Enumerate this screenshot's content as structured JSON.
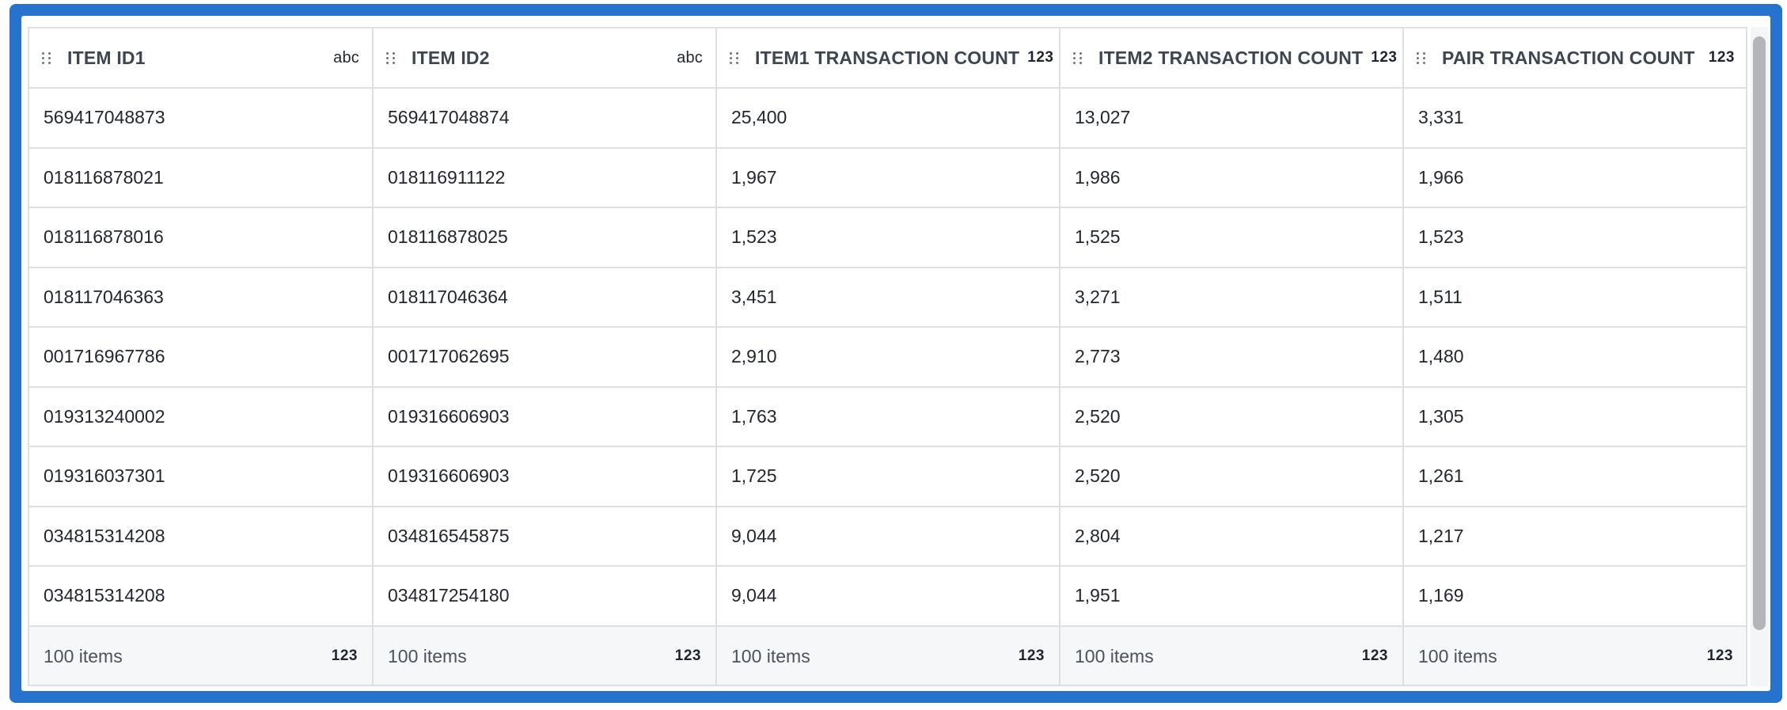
{
  "table": {
    "columns": [
      {
        "label": "ITEM ID1",
        "type_tag": "abc",
        "type_icon": "string-type-icon"
      },
      {
        "label": "ITEM ID2",
        "type_tag": "abc",
        "type_icon": "string-type-icon"
      },
      {
        "label": "ITEM1 TRANSACTION COUNT",
        "type_tag": "123",
        "type_icon": "number-type-icon"
      },
      {
        "label": "ITEM2 TRANSACTION COUNT",
        "type_tag": "123",
        "type_icon": "number-type-icon"
      },
      {
        "label": "PAIR TRANSACTION COUNT",
        "type_tag": "123",
        "type_icon": "number-type-icon"
      }
    ],
    "rows": [
      [
        "569417048873",
        "569417048874",
        "25,400",
        "13,027",
        "3,331"
      ],
      [
        "018116878021",
        "018116911122",
        "1,967",
        "1,986",
        "1,966"
      ],
      [
        "018116878016",
        "018116878025",
        "1,523",
        "1,525",
        "1,523"
      ],
      [
        "018117046363",
        "018117046364",
        "3,451",
        "3,271",
        "1,511"
      ],
      [
        "001716967786",
        "001717062695",
        "2,910",
        "2,773",
        "1,480"
      ],
      [
        "019313240002",
        "019316606903",
        "1,763",
        "2,520",
        "1,305"
      ],
      [
        "019316037301",
        "019316606903",
        "1,725",
        "2,520",
        "1,261"
      ],
      [
        "034815314208",
        "034816545875",
        "9,044",
        "2,804",
        "1,217"
      ],
      [
        "034815314208",
        "034817254180",
        "9,044",
        "1,951",
        "1,169"
      ]
    ],
    "footer": [
      {
        "count": "100 items",
        "tag": "123"
      },
      {
        "count": "100 items",
        "tag": "123"
      },
      {
        "count": "100 items",
        "tag": "123"
      },
      {
        "count": "100 items",
        "tag": "123"
      },
      {
        "count": "100 items",
        "tag": "123"
      }
    ]
  },
  "colors": {
    "frame_accent": "#2573cd",
    "grid_border": "#dcdfe3",
    "footer_bg": "#f6f7f9",
    "scroll_thumb": "#b3b5b8"
  },
  "icons": {
    "drag_handle": "drag-handle-icon",
    "string_type": "abc",
    "number_type": "123"
  }
}
